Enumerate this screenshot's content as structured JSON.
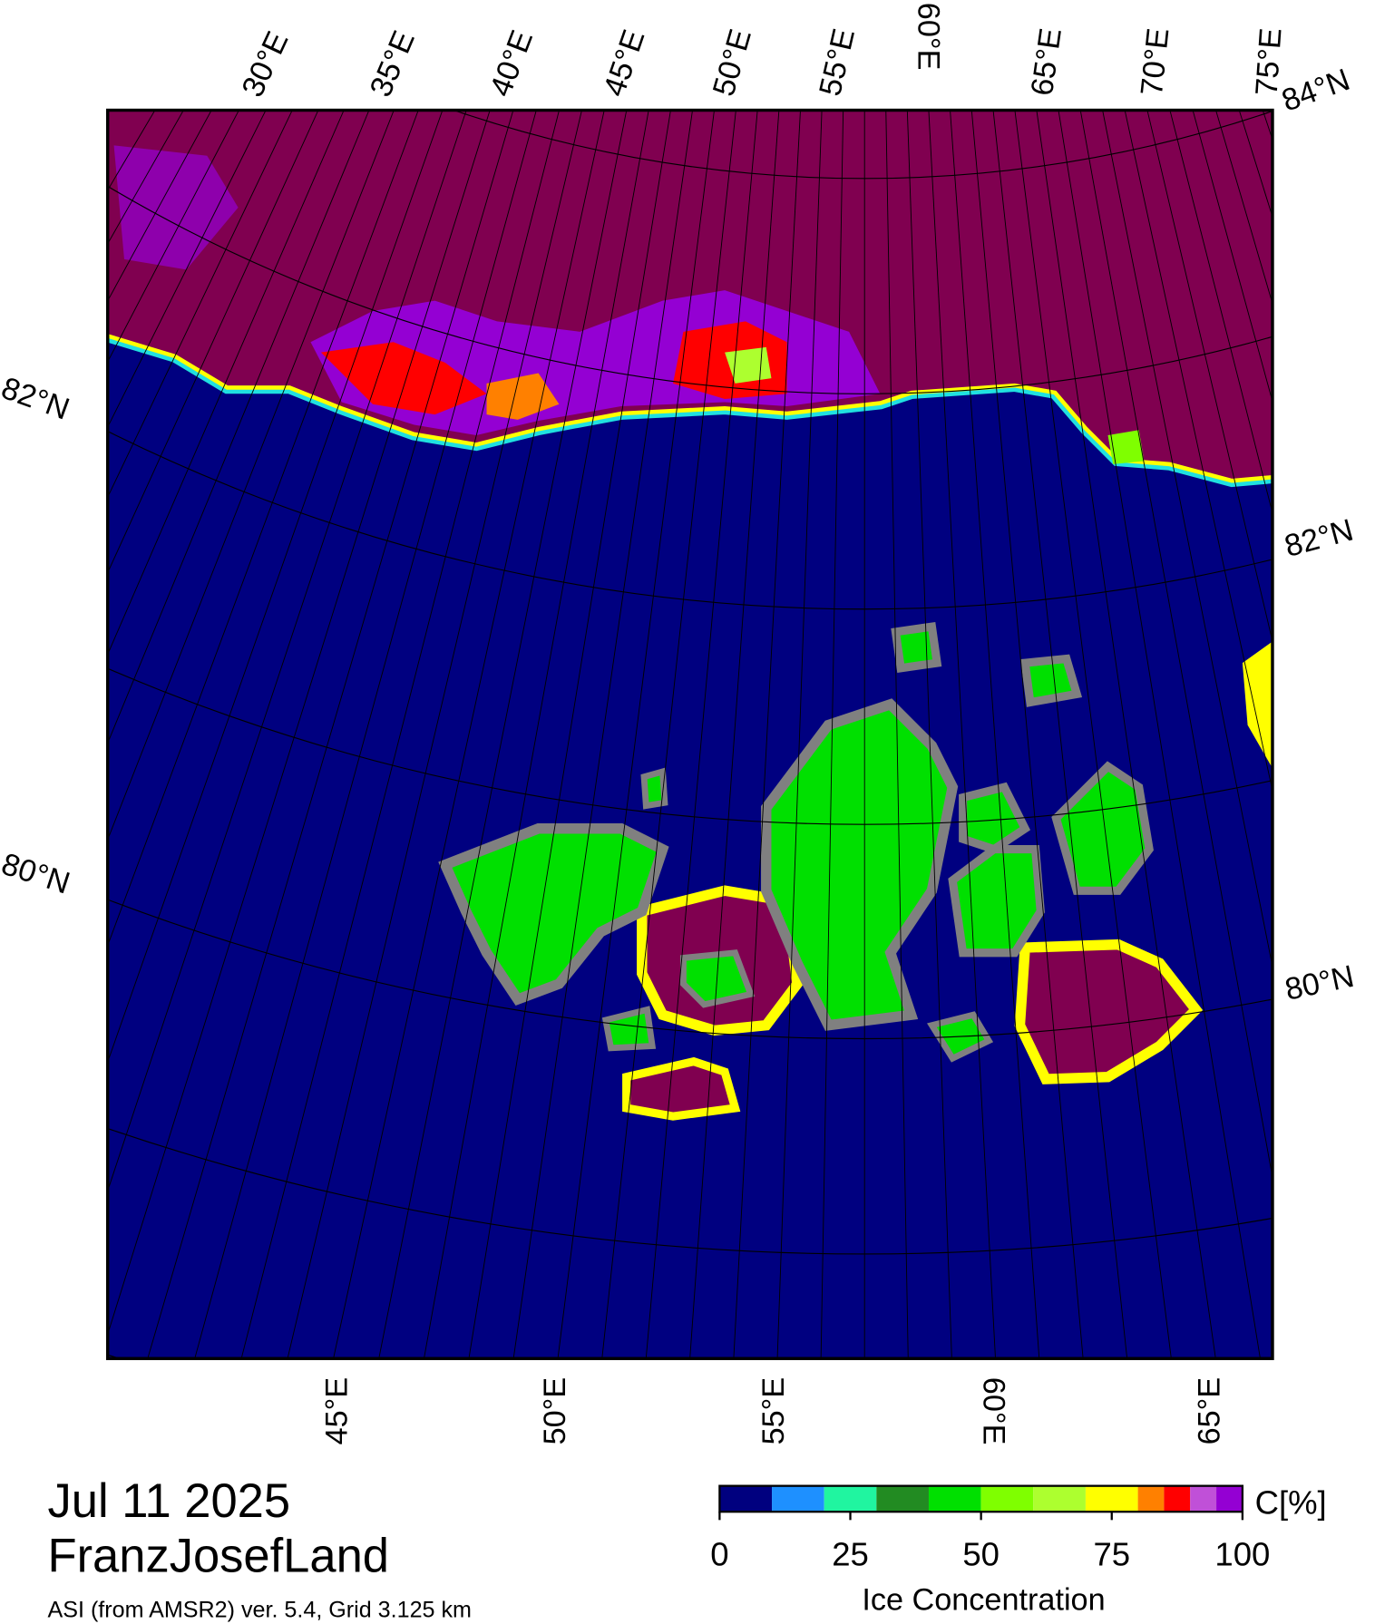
{
  "title": {
    "date": "Jul 11 2025",
    "region": "FranzJosefLand",
    "source": "ASI (from AMSR2) ver. 5.4,  Grid 3.125 km"
  },
  "map": {
    "lon_labels_top": [
      "30°E",
      "35°E",
      "40°E",
      "45°E",
      "50°E",
      "55°E",
      "60°E",
      "65°E",
      "70°E",
      "75°E"
    ],
    "lat_labels_right": [
      "84°N",
      "82°N",
      "80°N"
    ],
    "lat_labels_left": [
      "82°N",
      "80°N"
    ],
    "lon_labels_bottom": [
      "45°E",
      "50°E",
      "55°E",
      "60°E",
      "65°E"
    ]
  },
  "colorbar": {
    "bounds": [
      0,
      10,
      20,
      30,
      40,
      50,
      60,
      70,
      80,
      85,
      90,
      95,
      100
    ],
    "colors": [
      "#00007f",
      "#1e90ff",
      "#20f5a0",
      "#228b22",
      "#00e000",
      "#7fff00",
      "#adff2f",
      "#ffff00",
      "#ff8000",
      "#ff0000",
      "#c050d8",
      "#9400d3"
    ],
    "ticks": [
      0,
      25,
      50,
      75,
      100
    ],
    "unit": "C[%]",
    "label": "Ice Concentration"
  }
}
